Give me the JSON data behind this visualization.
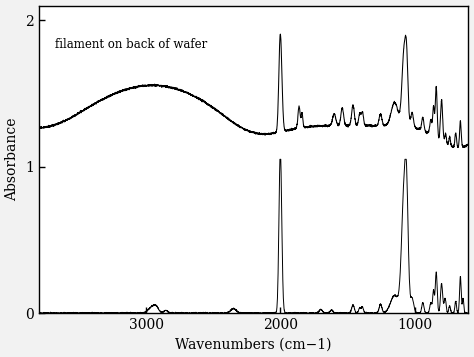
{
  "title": "",
  "xlabel": "Wavenumbers (cm−1)",
  "ylabel": "Absorbance",
  "annotation": "filament on back of wafer",
  "xlim": [
    3800,
    600
  ],
  "ylim": [
    0,
    2.1
  ],
  "yticks": [
    0,
    1,
    2
  ],
  "xticks": [
    3000,
    2000,
    1000
  ],
  "background_color": "#f0f0f0",
  "line_color": "#000000",
  "figure_bg": "#e8e8e8"
}
